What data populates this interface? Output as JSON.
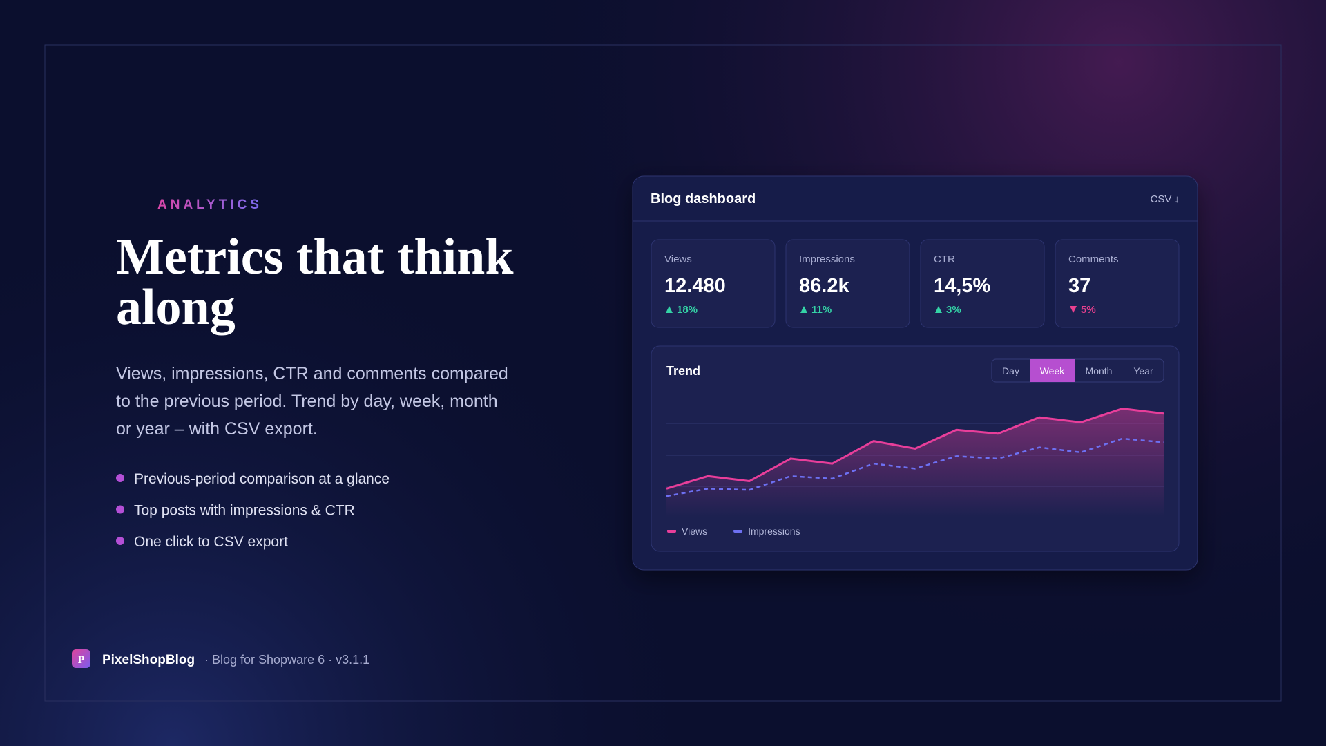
{
  "tag": "ANALYTICS",
  "title_lines": [
    "Metrics that think",
    "along"
  ],
  "description_lines": [
    "Views, impressions, CTR and comments compared",
    "to the previous period. Trend by day, week, month",
    "or year – with CSV export."
  ],
  "bullets": [
    "Previous-period comparison at a glance",
    "Top posts with impressions & CTR",
    "One click to CSV export"
  ],
  "footer": {
    "logo": "P",
    "brand": "PixelShopBlog",
    "subtitle": "· Blog for Shopware 6 · v3.1.1"
  },
  "dashboard": {
    "title": "Blog dashboard",
    "export": "CSV ↓",
    "kpis": [
      {
        "label": "Views",
        "value": "12.480",
        "change": "18%",
        "direction": "up"
      },
      {
        "label": "Impressions",
        "value": "86.2k",
        "change": "11%",
        "direction": "up"
      },
      {
        "label": "CTR",
        "value": "14,5%",
        "change": "3%",
        "direction": "up"
      },
      {
        "label": "Comments",
        "value": "37",
        "change": "5%",
        "direction": "down"
      }
    ],
    "tabs": [
      "Day",
      "Week",
      "Month",
      "Year"
    ],
    "active_tab": 1
  },
  "chart_data": {
    "type": "line",
    "title": "Trend",
    "categories": [
      null,
      null,
      null,
      null,
      null,
      null,
      null,
      null,
      null,
      null,
      null,
      null,
      null
    ],
    "series": [
      {
        "name": "Views",
        "color": "#e83e9a",
        "dashed": false,
        "area": true,
        "values": [
          23,
          33,
          29,
          47,
          43,
          61,
          55,
          70,
          67,
          80,
          76,
          87,
          83
        ]
      },
      {
        "name": "Impressions",
        "color": "#6d70f2",
        "dashed": true,
        "area": false,
        "values": [
          17,
          23,
          22,
          33,
          31,
          43,
          39,
          49,
          47,
          56,
          52,
          63,
          60
        ]
      }
    ],
    "ylim": [
      0,
      100
    ]
  }
}
